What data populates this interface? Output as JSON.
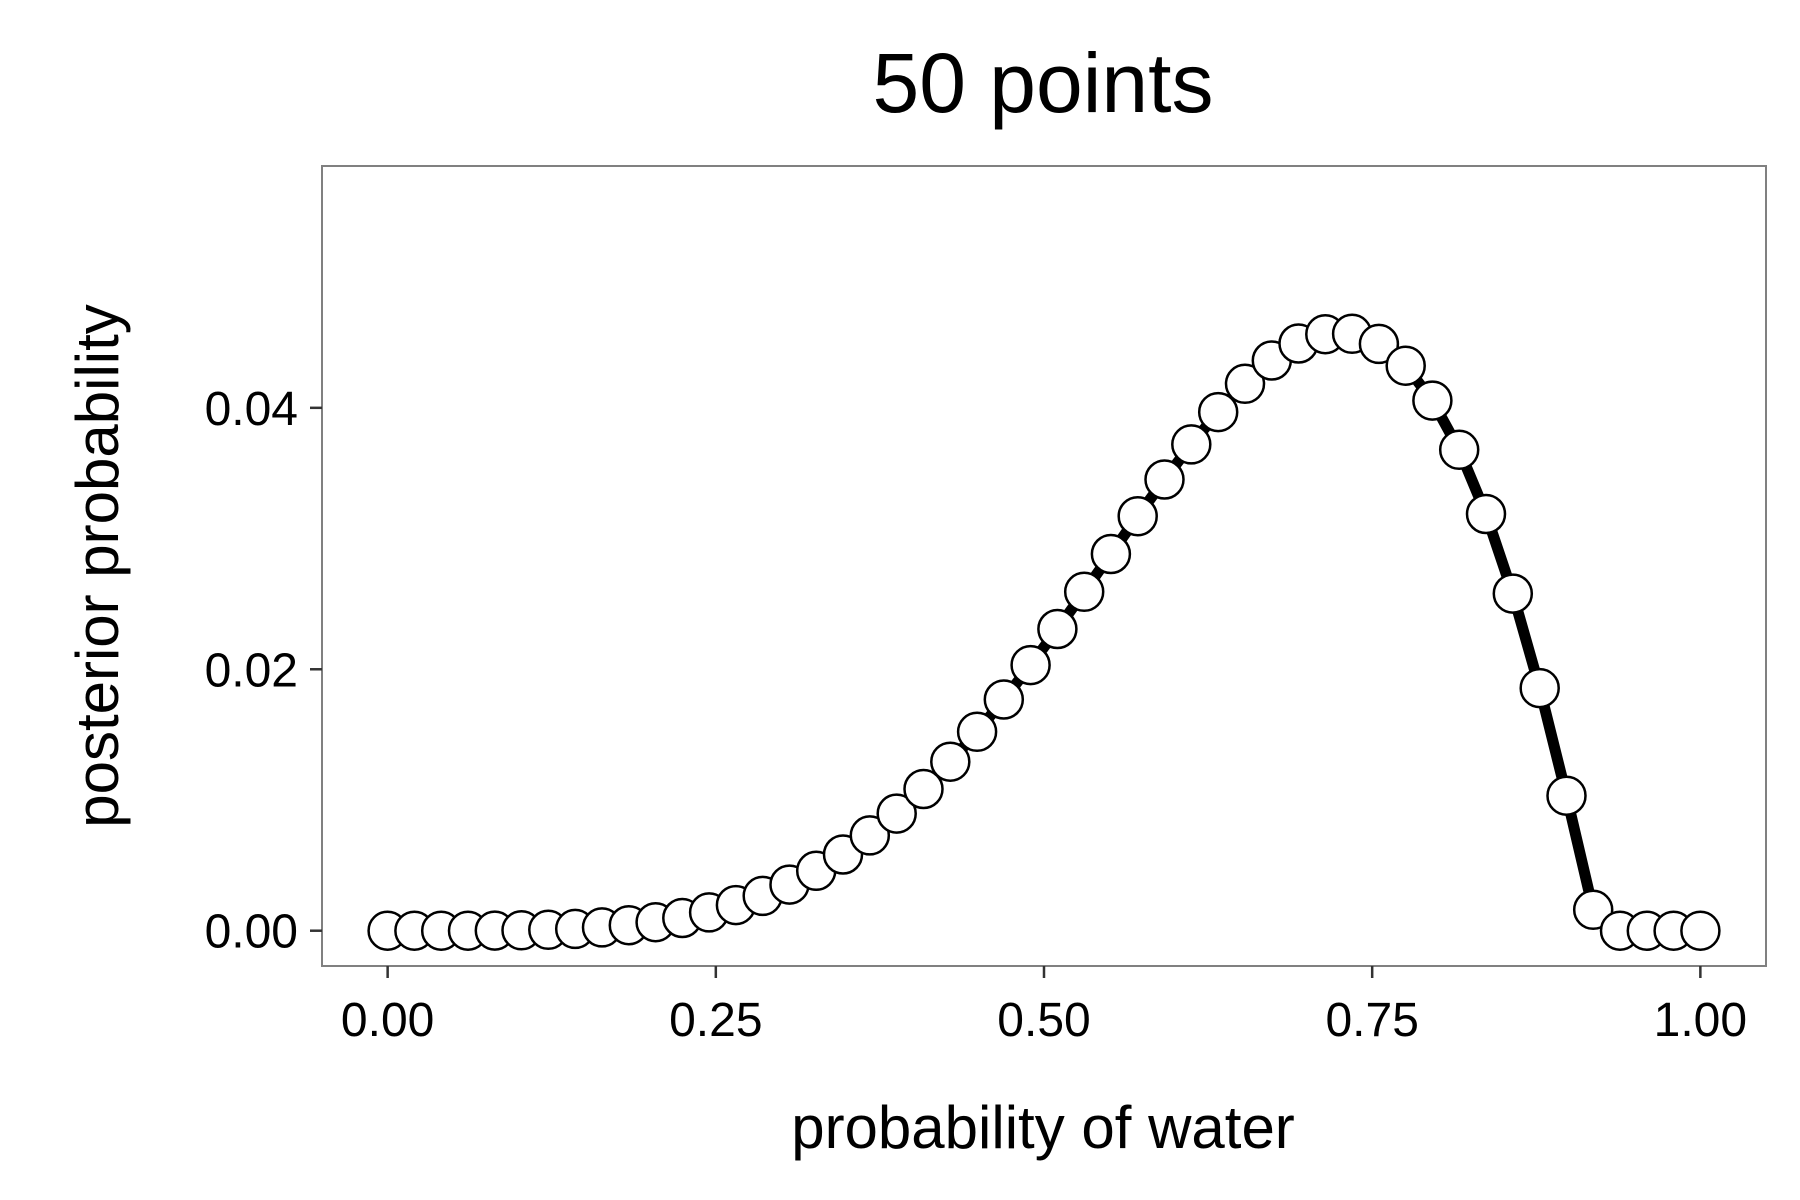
{
  "chart_data": {
    "type": "line",
    "title": "50 points",
    "xlabel": "probability of water",
    "ylabel": "posterior probability",
    "xlim": [
      -0.05,
      1.05
    ],
    "ylim": [
      -0.0027,
      0.0585
    ],
    "x_ticks": [
      0,
      0.25,
      0.5,
      0.75,
      1
    ],
    "x_tick_labels": [
      "0.00",
      "0.25",
      "0.50",
      "0.75",
      "1.00"
    ],
    "y_ticks": [
      0,
      0.02,
      0.04
    ],
    "y_tick_labels": [
      "0.00",
      "0.02",
      "0.04"
    ],
    "grid": false,
    "markers": "open circles",
    "series": [
      {
        "x": [
          0.0,
          0.0204,
          0.0408,
          0.0612,
          0.0816,
          0.102,
          0.1224,
          0.1429,
          0.1633,
          0.1837,
          0.2041,
          0.2245,
          0.2449,
          0.2653,
          0.2857,
          0.3061,
          0.3265,
          0.3469,
          0.3673,
          0.3878,
          0.4082,
          0.4286,
          0.449,
          0.4694,
          0.4898,
          0.5102,
          0.5306,
          0.551,
          0.5714,
          0.5918,
          0.6122,
          0.6327,
          0.6531,
          0.6735,
          0.6939,
          0.7143,
          0.7347,
          0.7551,
          0.7755,
          0.7959,
          0.8163,
          0.8367,
          0.8571,
          0.8776,
          0.898,
          0.9184,
          0.9388,
          0.9592,
          0.9796,
          1.0
        ],
        "y": [
          0.0,
          0.0,
          0.0,
          0.0,
          1e-05,
          3e-05,
          7e-05,
          0.00014,
          0.00025,
          0.00042,
          0.00065,
          0.00097,
          0.0014,
          0.00196,
          0.00266,
          0.00353,
          0.00458,
          0.00583,
          0.00729,
          0.00896,
          0.01084,
          0.01293,
          0.01522,
          0.01769,
          0.02032,
          0.02308,
          0.02593,
          0.02882,
          0.03171,
          0.03452,
          0.0372,
          0.03967,
          0.04184,
          0.04362,
          0.04492,
          0.04563,
          0.04566,
          0.04489,
          0.04322,
          0.04055,
          0.03679,
          0.03188,
          0.02579,
          0.01856,
          0.01033,
          0.0016,
          0.0,
          0.0,
          0.0,
          0.0
        ]
      }
    ]
  }
}
